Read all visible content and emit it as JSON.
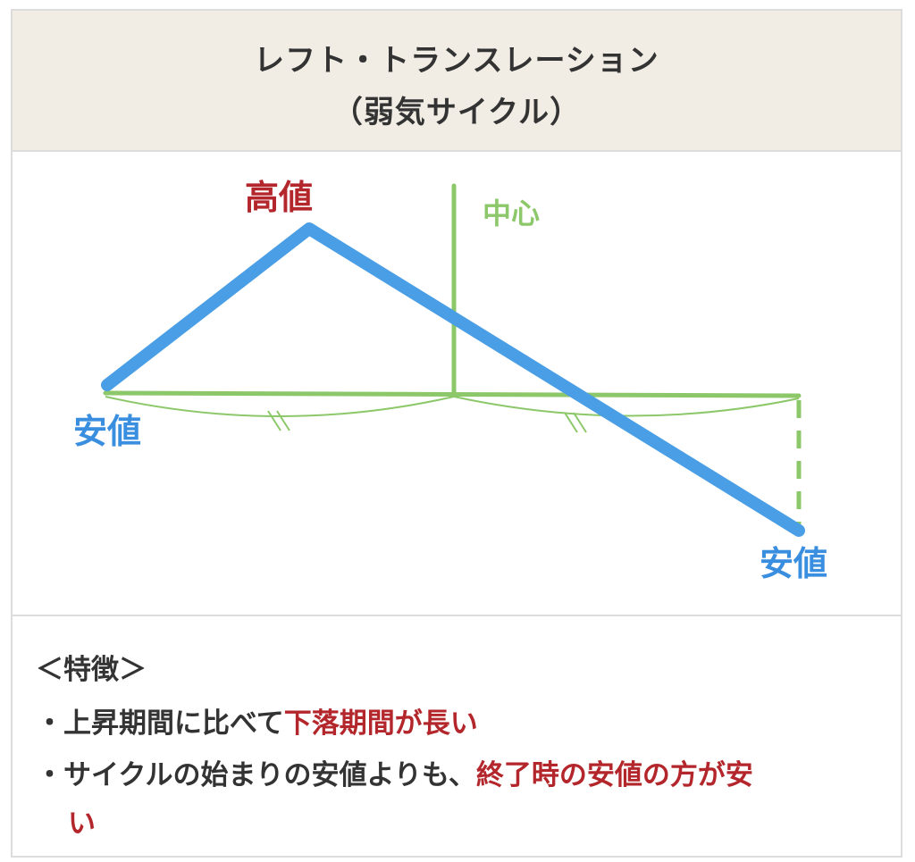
{
  "header": {
    "title_line1": "レフト・トランスレーション",
    "title_line2": "（弱気サイクル）"
  },
  "diagram": {
    "high_label": "高値",
    "center_label": "中心",
    "low_start_label": "安値",
    "low_end_label": "安値",
    "colors": {
      "price_line": "#4a9ee6",
      "guide_line": "#8cc86a",
      "high_text": "#b3262b",
      "low_text": "#3a8ee0"
    }
  },
  "features": {
    "heading": "＜特徴＞",
    "item1_prefix": "・上昇期間に比べて",
    "item1_highlight": "下落期間が長い",
    "item2_prefix": "・サイクルの始まりの安値よりも、",
    "item2_highlight_a": "終了時の安値の方が安",
    "item2_highlight_b": "い"
  }
}
